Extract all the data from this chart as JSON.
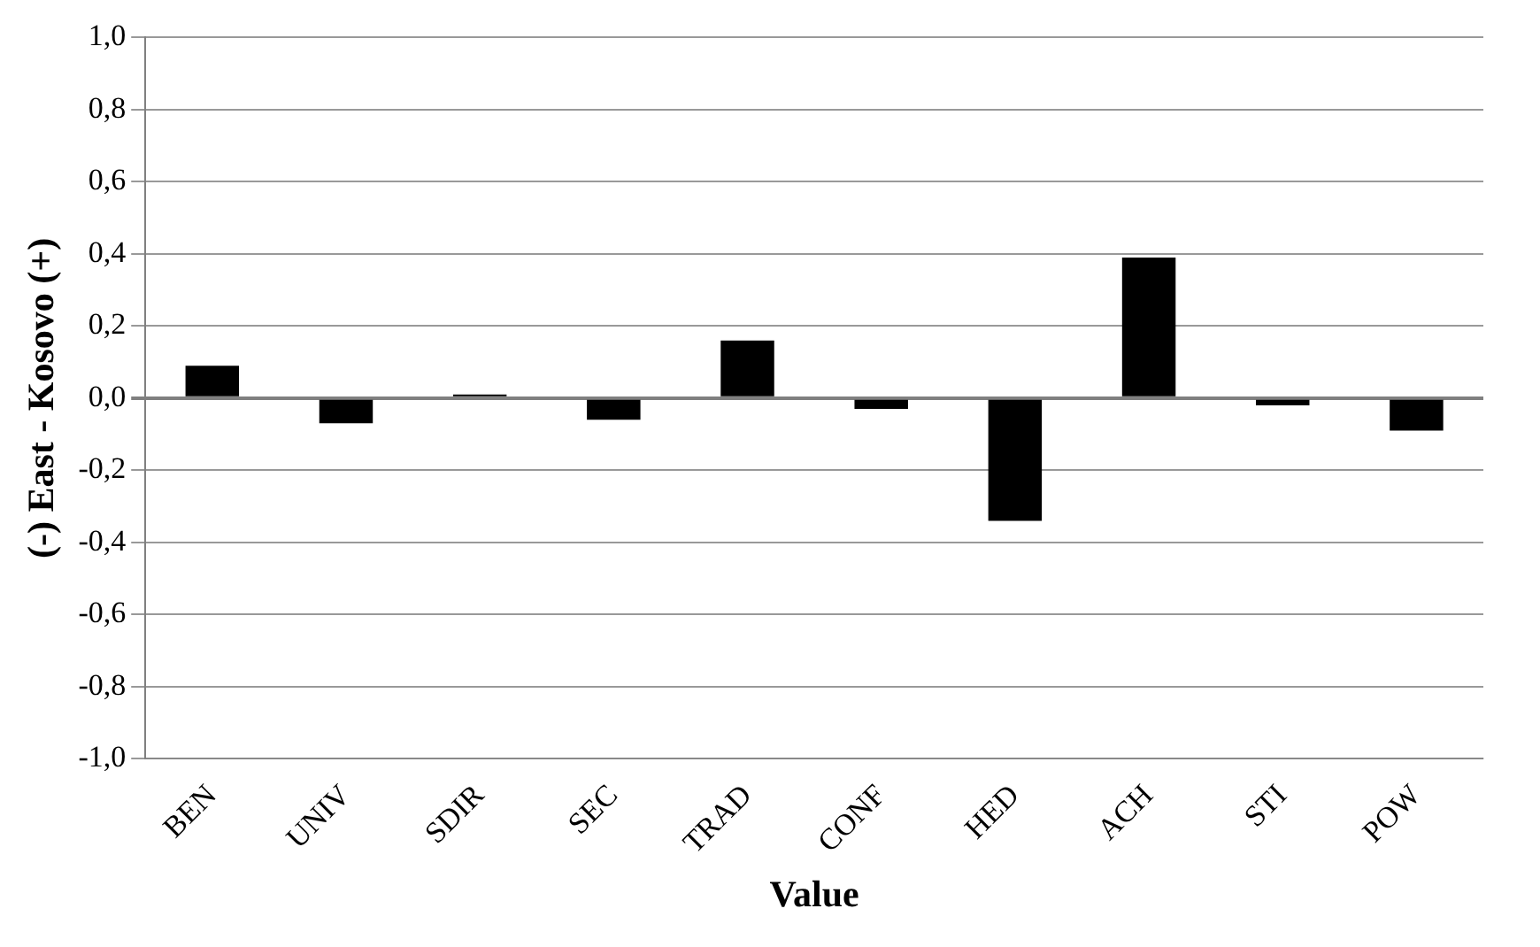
{
  "chart_data": {
    "type": "bar",
    "xlabel": "Value",
    "ylabel": "(-) East - Kosovo (+)",
    "categories": [
      "BEN",
      "UNIV",
      "SDIR",
      "SEC",
      "TRAD",
      "CONF",
      "HED",
      "ACH",
      "STI",
      "POW"
    ],
    "values": [
      0.09,
      -0.07,
      0.01,
      -0.06,
      0.16,
      -0.03,
      -0.34,
      0.39,
      -0.02,
      -0.09
    ],
    "color": "#000000",
    "ylim": [
      -1.0,
      1.0
    ],
    "yticks": [
      {
        "value": -1.0,
        "label": "-1,0"
      },
      {
        "value": -0.8,
        "label": "-0,8"
      },
      {
        "value": -0.6,
        "label": "-0,6"
      },
      {
        "value": -0.4,
        "label": "-0,4"
      },
      {
        "value": -0.2,
        "label": "-0,2"
      },
      {
        "value": 0,
        "label": "0,0"
      },
      {
        "value": 0.2,
        "label": "0,2"
      },
      {
        "value": 0.4,
        "label": "0,4"
      },
      {
        "value": 0.6,
        "label": "0,6"
      },
      {
        "value": 0.8,
        "label": "0,8"
      },
      {
        "value": 1.0,
        "label": "1,0"
      }
    ],
    "grid": "y"
  }
}
